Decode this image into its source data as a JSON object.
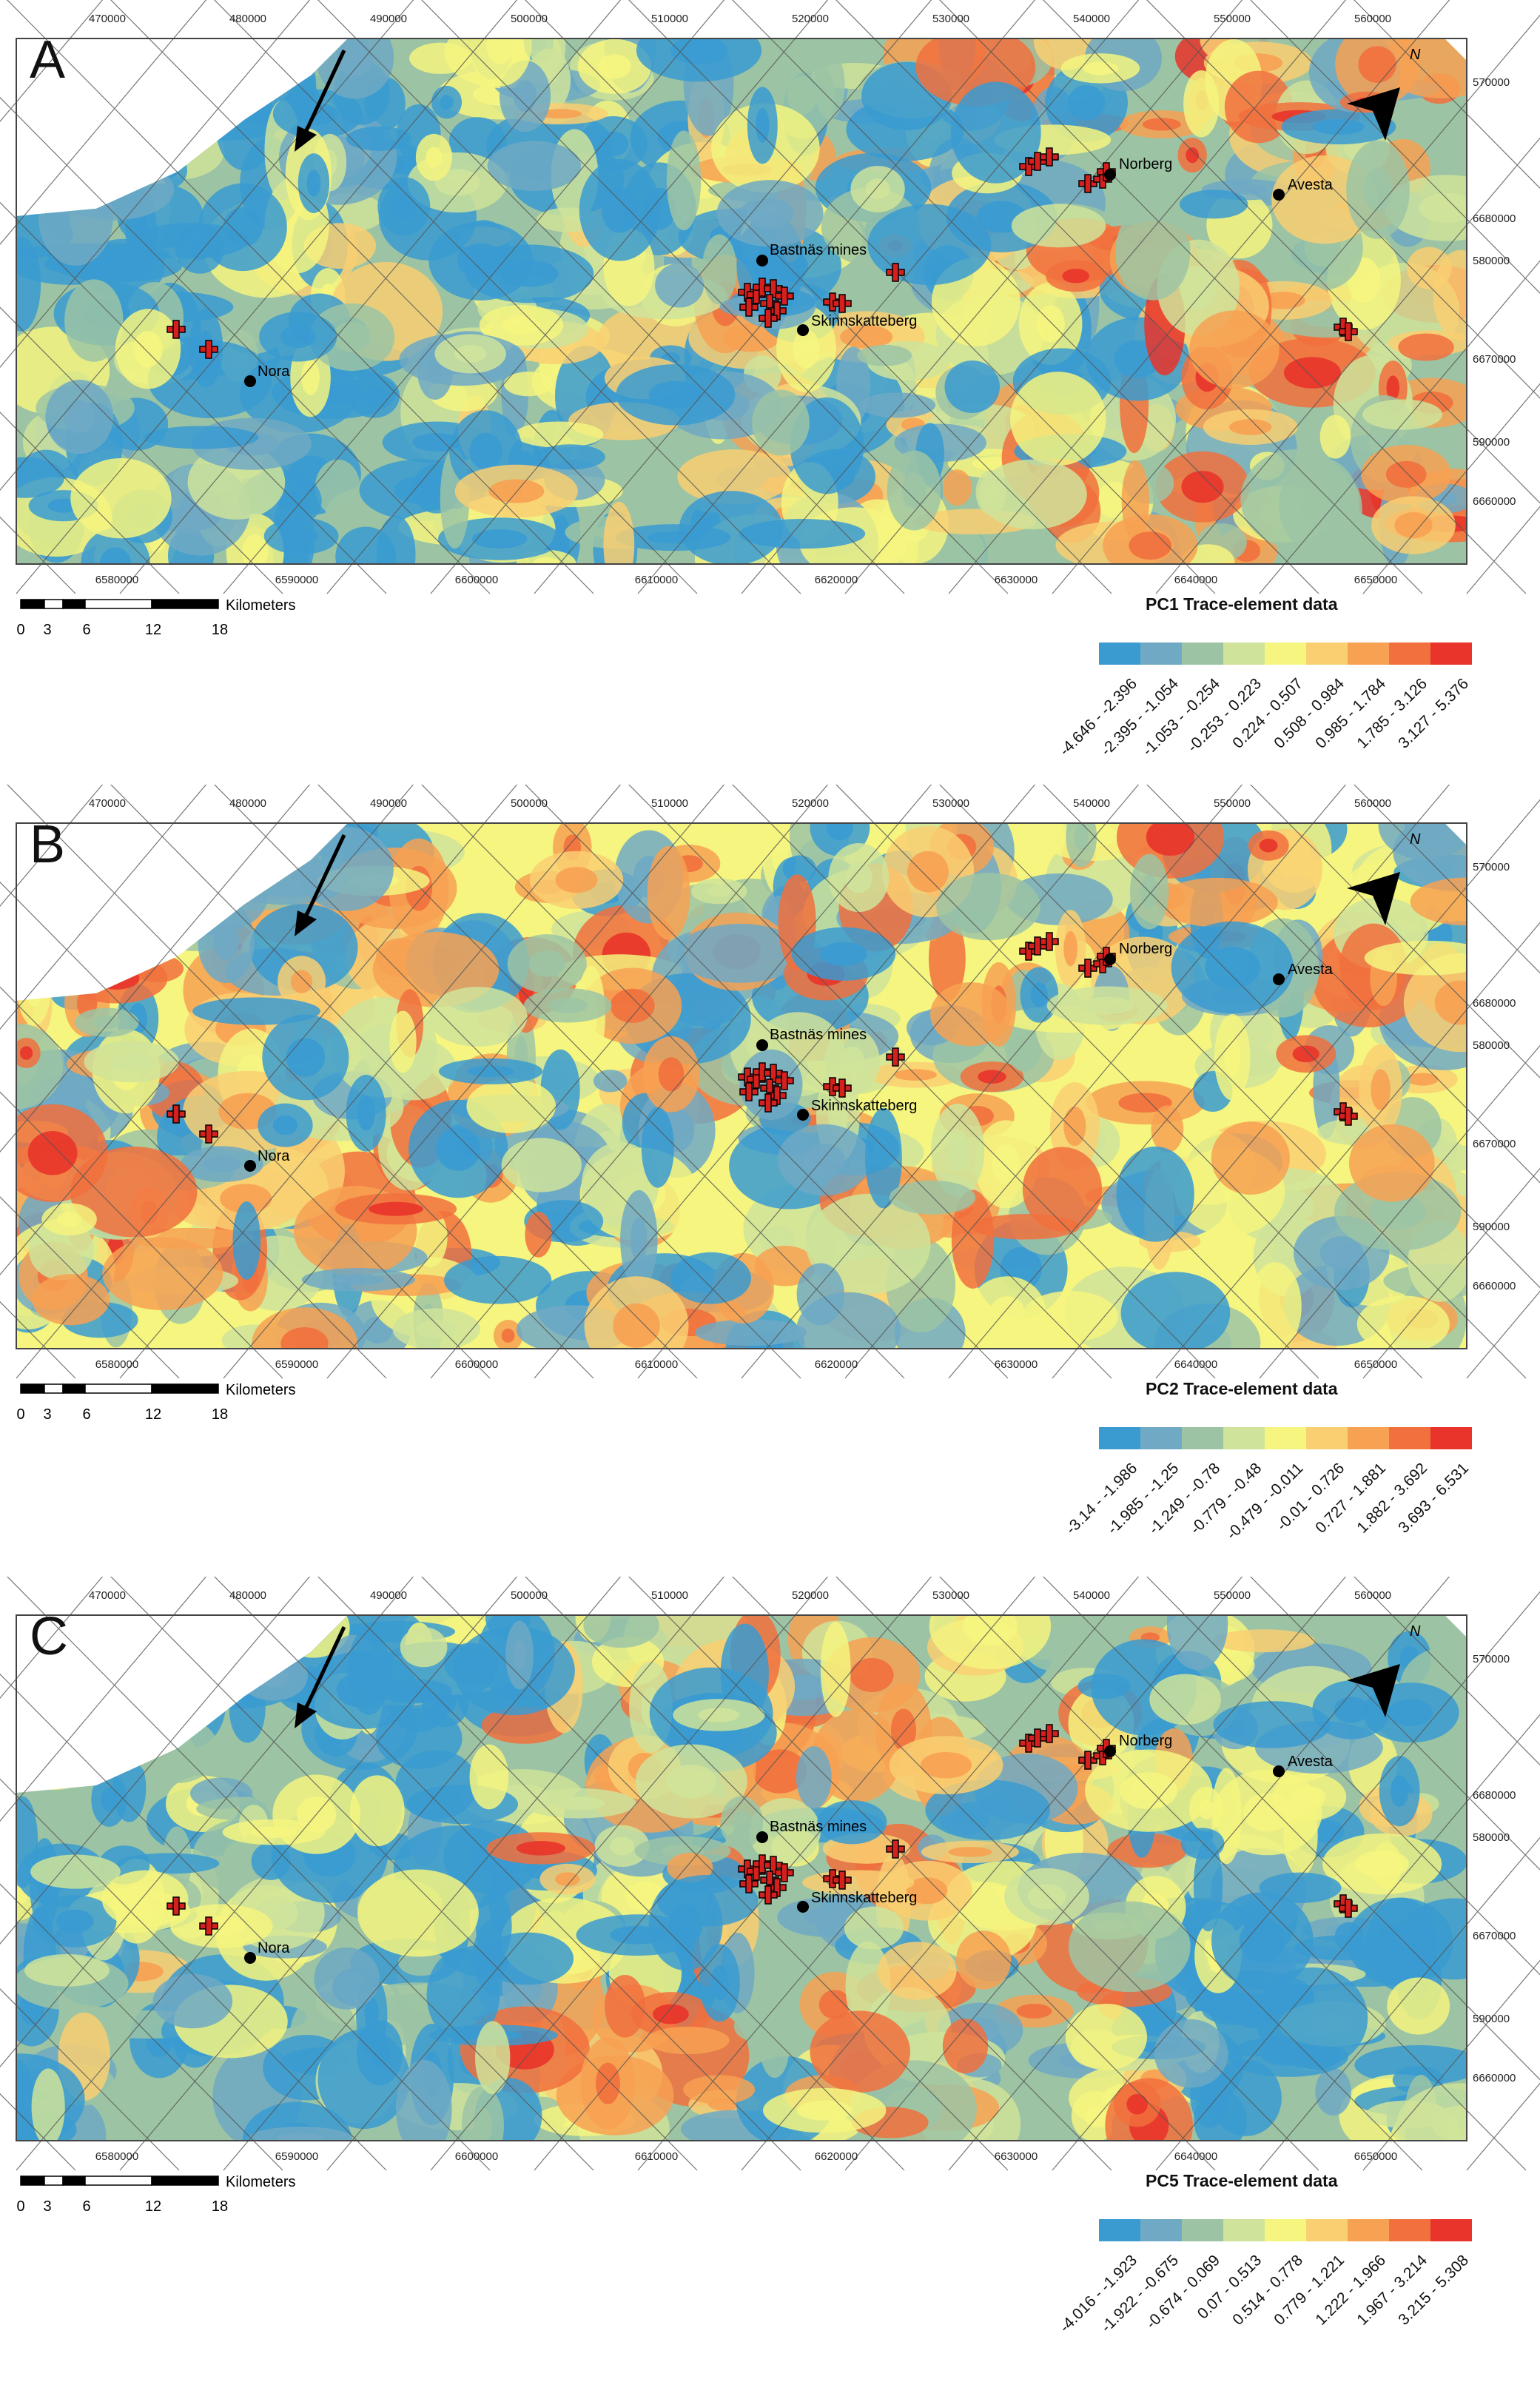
{
  "panels": [
    {
      "letter": "A",
      "legend_title": "PC1 Trace-element data",
      "classes": [
        "-4.646 - -2.396",
        "-2.395 - -1.054",
        "-1.053 - -0.254",
        "-0.253 - 0.223",
        "0.224 - 0.507",
        "0.508 - 0.984",
        "0.985 - 1.784",
        "1.785 - 3.126",
        "3.127 - 5.376"
      ]
    },
    {
      "letter": "B",
      "legend_title": "PC2 Trace-element data",
      "classes": [
        "-3.14 - -1.986",
        "-1.985 - -1.25",
        "-1.249 - -0.78",
        "-0.779 - -0.48",
        "-0.479 - -0.011",
        "-0.01 - 0.726",
        "0.727 - 1.881",
        "1.882 - 3.692",
        "3.693 - 6.531"
      ]
    },
    {
      "letter": "C",
      "legend_title": "PC5 Trace-element data",
      "classes": [
        "-4.016 - -1.923",
        "-1.922 - -0.675",
        "-0.674 - 0.069",
        "0.07 - 0.513",
        "0.514 - 0.778",
        "0.779 - 1.221",
        "1.222 - 1.966",
        "1.967 - 3.214",
        "3.215 - 5.308"
      ]
    }
  ],
  "palette": [
    "#3a9bd1",
    "#6fa9c4",
    "#9cc4a4",
    "#cfe39a",
    "#f5f57f",
    "#f9cf72",
    "#f7a152",
    "#f1703d",
    "#e8342a"
  ],
  "top_axis": [
    "470000",
    "480000",
    "490000",
    "500000",
    "510000",
    "520000",
    "530000",
    "540000",
    "550000",
    "560000"
  ],
  "bottom_axis": [
    "6580000",
    "6590000",
    "6600000",
    "6610000",
    "6620000",
    "6630000",
    "6640000",
    "6650000"
  ],
  "right_axis": [
    "570000",
    "6680000",
    "580000",
    "6670000",
    "590000",
    "6660000"
  ],
  "places": {
    "norberg": "Norberg",
    "avesta": "Avesta",
    "bastnas": "Bastnäs mines",
    "skinnskatteberg": "Skinnskatteberg",
    "nora": "Nora"
  },
  "north_label": "N",
  "scale_bar": {
    "unit": "Kilometers",
    "ticks": [
      "0",
      "3",
      "6",
      "12",
      "18"
    ]
  }
}
